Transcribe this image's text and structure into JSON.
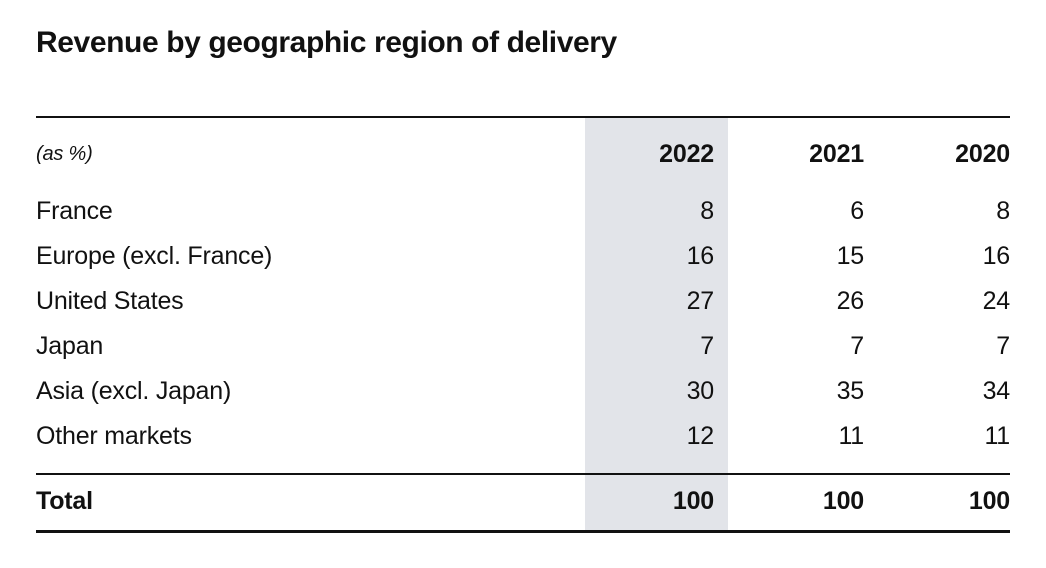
{
  "title": "Revenue by geographic region of delivery",
  "table": {
    "unit_label": "(as %)",
    "columns": [
      "2022",
      "2021",
      "2020"
    ],
    "rows": [
      {
        "label": "France",
        "values": [
          "8",
          "6",
          "8"
        ]
      },
      {
        "label": "Europe (excl. France)",
        "values": [
          "16",
          "15",
          "16"
        ]
      },
      {
        "label": "United States",
        "values": [
          "27",
          "26",
          "24"
        ]
      },
      {
        "label": "Japan",
        "values": [
          "7",
          "7",
          "7"
        ]
      },
      {
        "label": "Asia (excl. Japan)",
        "values": [
          "30",
          "35",
          "34"
        ]
      },
      {
        "label": "Other markets",
        "values": [
          "12",
          "11",
          "11"
        ]
      }
    ],
    "total": {
      "label": "Total",
      "values": [
        "100",
        "100",
        "100"
      ]
    }
  },
  "colors": {
    "highlight_column_bg": "#e2e4e9",
    "text": "#111111",
    "rule": "#111111"
  },
  "chart_data": {
    "type": "table",
    "title": "Revenue by geographic region of delivery",
    "unit": "as %",
    "categories": [
      "France",
      "Europe (excl. France)",
      "United States",
      "Japan",
      "Asia (excl. Japan)",
      "Other markets",
      "Total"
    ],
    "series": [
      {
        "name": "2022",
        "values": [
          8,
          16,
          27,
          7,
          30,
          12,
          100
        ]
      },
      {
        "name": "2021",
        "values": [
          6,
          15,
          26,
          7,
          35,
          11,
          100
        ]
      },
      {
        "name": "2020",
        "values": [
          8,
          16,
          24,
          7,
          34,
          11,
          100
        ]
      }
    ],
    "highlighted_column": "2022",
    "layout": "highlighted first data column with gray band; horizontal rules above header, above total, and below total"
  }
}
